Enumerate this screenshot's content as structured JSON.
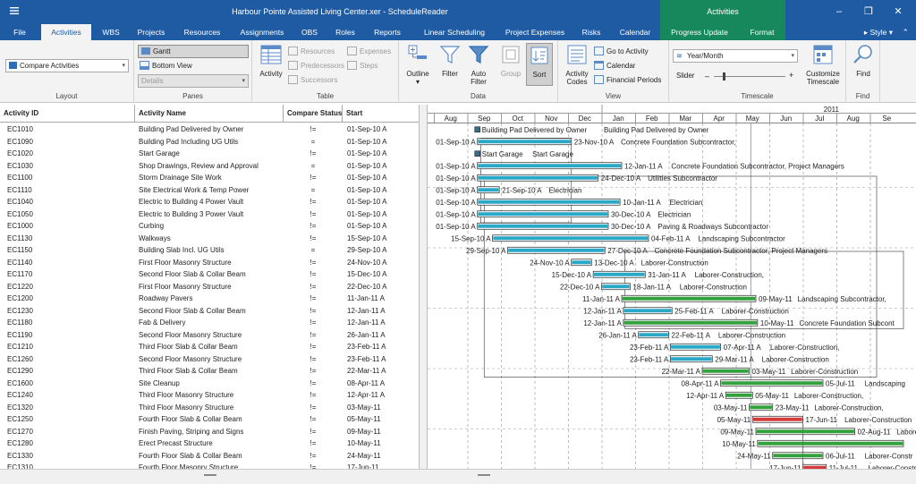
{
  "title_bar": {
    "title": "Harbour Pointe Assisted Living Center.xer - ScheduleReader",
    "context_group": "Activities",
    "qat_icon": "menu-lines-icon",
    "minimize": "–",
    "restore": "❐",
    "close": "✕"
  },
  "tabs": [
    "File",
    "Activities",
    "WBS",
    "Projects",
    "Resources",
    "Assignments",
    "OBS",
    "Roles",
    "Reports",
    "Linear Scheduling",
    "Project Expenses",
    "Risks",
    "Calendar",
    "Progress Update",
    "Format"
  ],
  "style_menu": "Style",
  "ribbon": {
    "layout": {
      "combo_value": "Compare Activities",
      "label": "Layout"
    },
    "panes": {
      "gantt": "Gantt",
      "bottom_view": "Bottom View",
      "details": "Details",
      "label": "Panes"
    },
    "table": {
      "activity": "Activity",
      "resources": "Resources",
      "predecessors": "Predecessors",
      "successors": "Successors",
      "expenses": "Expenses",
      "steps": "Steps",
      "label": "Table"
    },
    "data": {
      "outline": "Outline",
      "filter": "Filter",
      "auto_filter_1": "Auto",
      "auto_filter_2": "Filter",
      "group": "Group",
      "sort": "Sort",
      "label": "Data"
    },
    "view": {
      "activity_codes_1": "Activity",
      "activity_codes_2": "Codes",
      "go_to_activity": "Go to Activity",
      "calendar": "Calendar",
      "financial_periods": "Financial Periods",
      "label": "View"
    },
    "timescale": {
      "combo_value": "Year/Month",
      "slider": "Slider",
      "customize_1": "Customize",
      "customize_2": "Timescale",
      "label": "Timescale"
    },
    "find": {
      "find": "Find",
      "label": "Find"
    }
  },
  "table": {
    "headers": [
      "Activity ID",
      "Activity Name",
      "Compare Status",
      "Start"
    ],
    "rows": [
      [
        "EC1010",
        "Building Pad Delivered by Owner",
        "!=",
        "01-Sep-10 A"
      ],
      [
        "EC1090",
        "Building Pad Including UG Utils",
        "=",
        "01-Sep-10 A"
      ],
      [
        "EC1020",
        "Start Garage",
        "!=",
        "01-Sep-10 A"
      ],
      [
        "EC1030",
        "Shop Drawings, Review and Approval",
        "=",
        "01-Sep-10 A"
      ],
      [
        "EC1100",
        "Storm Drainage Site Work",
        "!=",
        "01-Sep-10 A"
      ],
      [
        "EC1110",
        "Site Electrical Work & Temp Power",
        "=",
        "01-Sep-10 A"
      ],
      [
        "EC1040",
        "Electric to Building 4 Power Vault",
        "!=",
        "01-Sep-10 A"
      ],
      [
        "EC1050",
        "Electric to Building 3 Power Vault",
        "!=",
        "01-Sep-10 A"
      ],
      [
        "EC1000",
        "Curbing",
        "!=",
        "01-Sep-10 A"
      ],
      [
        "EC1130",
        "Walkways",
        "!=",
        "15-Sep-10 A"
      ],
      [
        "EC1150",
        "Building Slab Incl. UG Utils",
        "=",
        "29-Sep-10 A"
      ],
      [
        "EC1140",
        "First Floor Masonry Structure",
        "!=",
        "24-Nov-10 A"
      ],
      [
        "EC1170",
        "Second Floor Slab & Collar Beam",
        "!=",
        "15-Dec-10 A"
      ],
      [
        "EC1220",
        "First Floor Masonry Structure",
        "!=",
        "22-Dec-10 A"
      ],
      [
        "EC1200",
        "Roadway Pavers",
        "!=",
        "11-Jan-11 A"
      ],
      [
        "EC1230",
        "Second Floor Slab & Collar Beam",
        "!=",
        "12-Jan-11 A"
      ],
      [
        "EC1180",
        "Fab & Delivery",
        "!=",
        "12-Jan-11 A"
      ],
      [
        "EC1190",
        "Second Floor Masonry Structure",
        "!=",
        "26-Jan-11 A"
      ],
      [
        "EC1210",
        "Third Floor Slab & Collar Beam",
        "!=",
        "23-Feb-11 A"
      ],
      [
        "EC1260",
        "Second Floor Masonry Structure",
        "!=",
        "23-Feb-11 A"
      ],
      [
        "EC1290",
        "Third Floor Slab & Collar Beam",
        "!=",
        "22-Mar-11 A"
      ],
      [
        "EC1600",
        "Site Cleanup",
        "!=",
        "08-Apr-11 A"
      ],
      [
        "EC1240",
        "Third Floor Masonry Structure",
        "!=",
        "12-Apr-11 A"
      ],
      [
        "EC1320",
        "Third Floor Masonry Structure",
        "!=",
        "03-May-11"
      ],
      [
        "EC1250",
        "Fourth Floor Slab & Collar Beam",
        "!=",
        "05-May-11"
      ],
      [
        "EC1270",
        "Finish Paving, Striping and Signs",
        "!=",
        "09-May-11"
      ],
      [
        "EC1280",
        "Erect Precast Structure",
        "!=",
        "10-May-11"
      ],
      [
        "EC1330",
        "Fourth Floor Slab & Collar Beam",
        "!=",
        "24-May-11"
      ],
      [
        "EC1310",
        "Fourth Floor Masonry Structure",
        "!=",
        "17-Jun-11"
      ]
    ]
  },
  "gantt": {
    "year_label": "2011",
    "months": [
      "Aug",
      "Sep",
      "Oct",
      "Nov",
      "Dec",
      "Jan",
      "Feb",
      "Mar",
      "Apr",
      "May",
      "Jun",
      "Jul",
      "Aug",
      "Se"
    ],
    "rows": [
      {
        "start": "",
        "finish": "",
        "label": "Building Pad Delivered by Owner",
        "label2": "Building Pad Delivered by Owner",
        "s": 1.3,
        "f": 1.3,
        "type": "milestone"
      },
      {
        "start": "01-Sep-10 A",
        "finish": "23-Nov-10 A",
        "label": "Concrete Foundation Subcontractor,",
        "s": 1.3,
        "f": 4.1,
        "type": "bar"
      },
      {
        "start": "",
        "finish": "",
        "label": "Start Garage",
        "label2": "Start Garage",
        "s": 1.3,
        "f": 1.3,
        "type": "milestone"
      },
      {
        "start": "01-Sep-10 A",
        "finish": "12-Jan-11 A",
        "label": "Concrete Foundation Subcontractor, Project Managers",
        "s": 1.3,
        "f": 5.6,
        "type": "bar"
      },
      {
        "start": "01-Sep-10 A",
        "finish": "24-Dec-10 A",
        "label": "Utilities Subcontractor",
        "s": 1.3,
        "f": 4.9,
        "type": "bar"
      },
      {
        "start": "01-Sep-10 A",
        "finish": "21-Sep-10 A",
        "label": "Electrician",
        "s": 1.3,
        "f": 1.95,
        "type": "bar"
      },
      {
        "start": "01-Sep-10 A",
        "finish": "10-Jan-11 A",
        "label": "Electrician",
        "s": 1.3,
        "f": 5.55,
        "type": "bar"
      },
      {
        "start": "01-Sep-10 A",
        "finish": "30-Dec-10 A",
        "label": "Electrician",
        "s": 1.3,
        "f": 5.2,
        "type": "bar"
      },
      {
        "start": "01-Sep-10 A",
        "finish": "30-Dec-10 A",
        "label": "Paving & Roadways Subcontractor",
        "s": 1.3,
        "f": 5.2,
        "type": "bar"
      },
      {
        "start": "15-Sep-10 A",
        "finish": "04-Feb-11 A",
        "label": "Landscaping Subcontractor",
        "s": 1.75,
        "f": 6.4,
        "type": "bar"
      },
      {
        "start": "29-Sep-10 A",
        "finish": "27-Dec-10 A",
        "label": "Concrete Foundation Subcontractor, Project Managers",
        "s": 2.2,
        "f": 5.1,
        "type": "bar"
      },
      {
        "start": "24-Nov-10 A",
        "finish": "13-Dec-10 A",
        "label": "Laborer-Construction",
        "s": 4.1,
        "f": 4.7,
        "type": "bar"
      },
      {
        "start": "15-Dec-10 A",
        "finish": "31-Jan-11 A",
        "label": "Laborer-Construction,",
        "s": 4.75,
        "f": 6.3,
        "type": "bar"
      },
      {
        "start": "22-Dec-10 A",
        "finish": "18-Jan-11 A",
        "label": "Laborer-Construction",
        "s": 5.0,
        "f": 5.85,
        "type": "bar"
      },
      {
        "start": "11-Jan-11 A",
        "finish": "09-May-11",
        "label": "Landscaping Subcontractor,",
        "s": 5.6,
        "f": 9.6,
        "type": "bar",
        "green": true
      },
      {
        "start": "12-Jan-11 A",
        "finish": "25-Feb-11 A",
        "label": "Laborer-Construction",
        "s": 5.65,
        "f": 7.1,
        "type": "bar"
      },
      {
        "start": "12-Jan-11 A",
        "finish": "10-May-11",
        "label": "Concrete Foundation Subcont",
        "s": 5.65,
        "f": 9.65,
        "type": "bar",
        "green": true
      },
      {
        "start": "26-Jan-11 A",
        "finish": "22-Feb-11 A",
        "label": "Laborer-Construction",
        "s": 6.1,
        "f": 7.0,
        "type": "bar"
      },
      {
        "start": "23-Feb-11 A",
        "finish": "07-Apr-11 A",
        "label": "Laborer-Construction,",
        "s": 7.05,
        "f": 8.55,
        "type": "bar"
      },
      {
        "start": "23-Feb-11 A",
        "finish": "29-Mar-11 A",
        "label": "Laborer-Construction",
        "s": 7.05,
        "f": 8.3,
        "type": "bar"
      },
      {
        "start": "22-Mar-11 A",
        "finish": "03-May-11",
        "label": "Laborer-Construction",
        "s": 8.0,
        "f": 9.4,
        "type": "bar",
        "green": true
      },
      {
        "start": "08-Apr-11 A",
        "finish": "05-Jul-11",
        "label": "Landscaping",
        "s": 8.55,
        "f": 11.6,
        "type": "bar",
        "green": true
      },
      {
        "start": "12-Apr-11 A",
        "finish": "05-May-11",
        "label": "Laborer-Construction,",
        "s": 8.7,
        "f": 9.5,
        "type": "bar",
        "green": true
      },
      {
        "start": "03-May-11",
        "finish": "23-May-11",
        "label": "Laborer-Construction,",
        "s": 9.4,
        "f": 10.1,
        "type": "bar",
        "green": true
      },
      {
        "start": "05-May-11",
        "finish": "17-Jun-11",
        "label": "Laborer-Construction",
        "s": 9.5,
        "f": 11.0,
        "type": "bar",
        "red": true
      },
      {
        "start": "09-May-11",
        "finish": "02-Aug-11",
        "label": "Laborer-",
        "s": 9.6,
        "f": 12.55,
        "type": "bar",
        "green": true
      },
      {
        "start": "10-May-11",
        "finish": "",
        "label": "",
        "s": 9.65,
        "f": 14.0,
        "type": "bar",
        "green": true
      },
      {
        "start": "24-May-11",
        "finish": "06-Jul-11",
        "label": "Laborer-Constr",
        "s": 10.1,
        "f": 11.6,
        "type": "bar",
        "green": true
      },
      {
        "start": "17-Jun-11",
        "finish": "11-Jul-11",
        "label": "Laborer-Constr",
        "s": 11.0,
        "f": 11.7,
        "type": "bar",
        "red": true
      }
    ]
  }
}
